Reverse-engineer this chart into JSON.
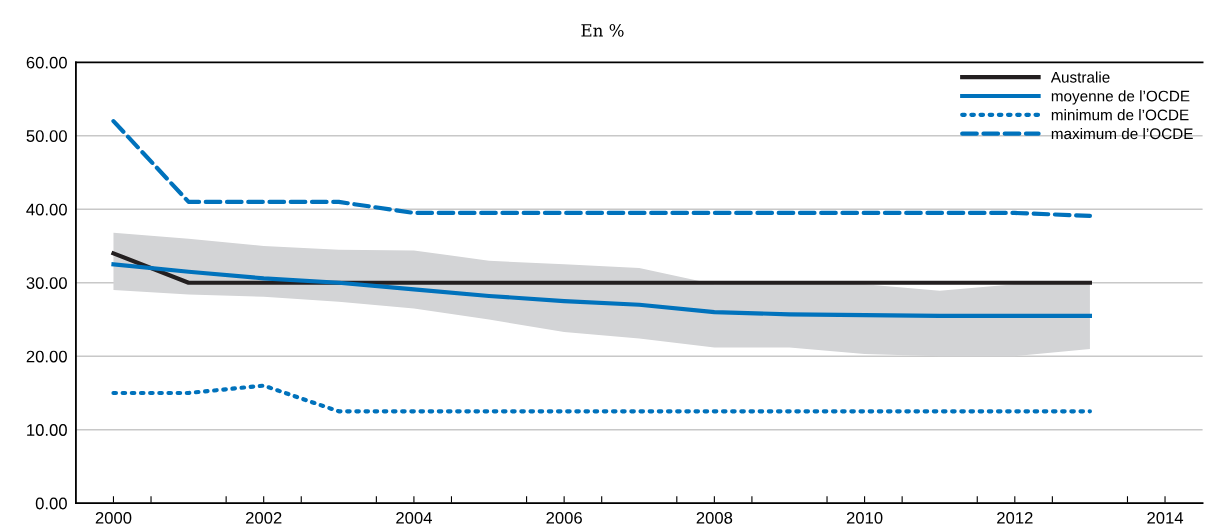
{
  "chart_data": {
    "type": "line",
    "subtitle": "En %",
    "x": [
      2000,
      2001,
      2002,
      2003,
      2004,
      2005,
      2006,
      2007,
      2008,
      2009,
      2010,
      2011,
      2012,
      2013
    ],
    "series": [
      {
        "name": "Australie",
        "color": "#231f20",
        "line_style": "solid",
        "values": [
          34,
          30,
          30,
          30,
          30,
          30,
          30,
          30,
          30,
          30,
          30,
          30,
          30,
          30
        ]
      },
      {
        "name": "moyenne de l’OCDE",
        "color": "#0072bc",
        "line_style": "solid",
        "values": [
          32.5,
          31.5,
          30.6,
          30.0,
          29.1,
          28.2,
          27.5,
          27.0,
          26.0,
          25.7,
          25.6,
          25.5,
          25.5,
          25.5
        ],
        "lower": [
          29.0,
          28.4,
          28.1,
          27.4,
          26.5,
          25.0,
          23.3,
          22.4,
          21.2,
          21.2,
          20.3,
          20.0,
          20.0,
          21.0
        ],
        "upper": [
          36.8,
          36.0,
          35.0,
          34.5,
          34.4,
          33.0,
          32.5,
          32.0,
          29.8,
          30.0,
          29.8,
          28.9,
          29.8,
          30.0
        ]
      },
      {
        "name": "minimum de l’OCDE",
        "color": "#0072bc",
        "line_style": "dotted",
        "values": [
          15,
          15,
          16,
          12.5,
          12.5,
          12.5,
          12.5,
          12.5,
          12.5,
          12.5,
          12.5,
          12.5,
          12.5,
          12.5
        ]
      },
      {
        "name": "maximum de l’OCDE",
        "color": "#0072bc",
        "line_style": "dashed",
        "values": [
          52,
          41,
          41,
          41,
          39.5,
          39.5,
          39.5,
          39.5,
          39.5,
          39.5,
          39.5,
          39.5,
          39.5,
          39.1
        ]
      }
    ],
    "xlim": [
      1999.5,
      2014.5
    ],
    "xticks": [
      {
        "value": 2000,
        "label": "2000"
      },
      {
        "value": 2000.5,
        "label": null
      },
      {
        "value": 2001.5,
        "label": null
      },
      {
        "value": 2002,
        "label": "2002"
      },
      {
        "value": 2002.5,
        "label": null
      },
      {
        "value": 2003.5,
        "label": null
      },
      {
        "value": 2004,
        "label": "2004"
      },
      {
        "value": 2004.5,
        "label": null
      },
      {
        "value": 2005.5,
        "label": null
      },
      {
        "value": 2006,
        "label": "2006"
      },
      {
        "value": 2006.5,
        "label": null
      },
      {
        "value": 2007.5,
        "label": null
      },
      {
        "value": 2008,
        "label": "2008"
      },
      {
        "value": 2008.5,
        "label": null
      },
      {
        "value": 2009.5,
        "label": null
      },
      {
        "value": 2010,
        "label": "2010"
      },
      {
        "value": 2010.5,
        "label": null
      },
      {
        "value": 2011.5,
        "label": null
      },
      {
        "value": 2012,
        "label": "2012"
      },
      {
        "value": 2012.5,
        "label": null
      },
      {
        "value": 2013.5,
        "label": null
      },
      {
        "value": 2014,
        "label": "2014"
      }
    ],
    "ylim": [
      0,
      60
    ],
    "yticks": [
      {
        "value": 0,
        "label": "0.00"
      },
      {
        "value": 10,
        "label": "10.00"
      },
      {
        "value": 20,
        "label": "20.00"
      },
      {
        "value": 30,
        "label": "30.00"
      },
      {
        "value": 40,
        "label": "40.00"
      },
      {
        "value": 50,
        "label": "50.00"
      },
      {
        "value": 60,
        "label": "60.00"
      }
    ],
    "grid": "y",
    "legend": "top right",
    "marker": "none"
  }
}
